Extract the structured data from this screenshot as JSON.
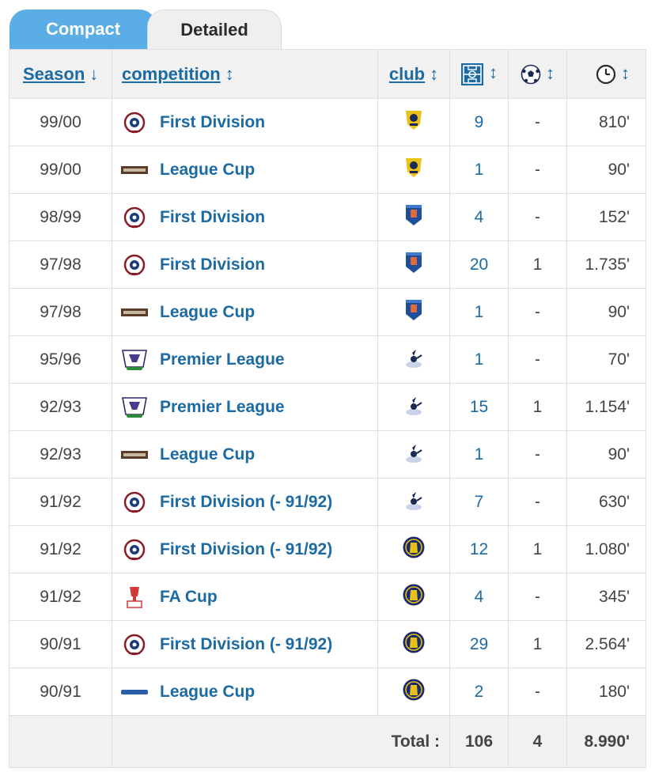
{
  "tabs": [
    {
      "label": "Compact",
      "active": true
    },
    {
      "label": "Detailed",
      "active": false
    }
  ],
  "header": {
    "season": "Season",
    "competition": "competition",
    "club": "club",
    "apps_icon": "pitch-icon",
    "goals_icon": "ball-icon",
    "minutes_icon": "clock-icon",
    "sort_desc": "↓",
    "sort_both": "↕"
  },
  "rows": [
    {
      "season": "99/00",
      "competition": "First Division",
      "comp_logo": "football-league-badge",
      "club_logo": "club-badge-yellow-navy",
      "apps": "9",
      "goals": "-",
      "minutes": "810'"
    },
    {
      "season": "99/00",
      "competition": "League Cup",
      "comp_logo": "league-cup-banner",
      "club_logo": "club-badge-yellow-navy",
      "apps": "1",
      "goals": "-",
      "minutes": "90'"
    },
    {
      "season": "98/99",
      "competition": "First Division",
      "comp_logo": "football-league-badge",
      "club_logo": "club-badge-blue-shield",
      "apps": "4",
      "goals": "-",
      "minutes": "152'"
    },
    {
      "season": "97/98",
      "competition": "First Division",
      "comp_logo": "football-league-badge",
      "club_logo": "club-badge-blue-shield",
      "apps": "20",
      "goals": "1",
      "minutes": "1.735'"
    },
    {
      "season": "97/98",
      "competition": "League Cup",
      "comp_logo": "league-cup-banner",
      "club_logo": "club-badge-blue-shield",
      "apps": "1",
      "goals": "-",
      "minutes": "90'"
    },
    {
      "season": "95/96",
      "competition": "Premier League",
      "comp_logo": "premier-league-lion",
      "club_logo": "club-badge-cockerel",
      "apps": "1",
      "goals": "-",
      "minutes": "70'"
    },
    {
      "season": "92/93",
      "competition": "Premier League",
      "comp_logo": "premier-league-lion",
      "club_logo": "club-badge-cockerel",
      "apps": "15",
      "goals": "1",
      "minutes": "1.154'"
    },
    {
      "season": "92/93",
      "competition": "League Cup",
      "comp_logo": "league-cup-banner",
      "club_logo": "club-badge-cockerel",
      "apps": "1",
      "goals": "-",
      "minutes": "90'"
    },
    {
      "season": "91/92",
      "competition": "First Division (- 91/92)",
      "comp_logo": "football-league-badge",
      "club_logo": "club-badge-cockerel",
      "apps": "7",
      "goals": "-",
      "minutes": "630'"
    },
    {
      "season": "91/92",
      "competition": "First Division (- 91/92)",
      "comp_logo": "football-league-badge",
      "club_logo": "club-badge-round-navy",
      "apps": "12",
      "goals": "1",
      "minutes": "1.080'"
    },
    {
      "season": "91/92",
      "competition": "FA Cup",
      "comp_logo": "fa-cup-trophy",
      "club_logo": "club-badge-round-navy",
      "apps": "4",
      "goals": "-",
      "minutes": "345'"
    },
    {
      "season": "90/91",
      "competition": "First Division (- 91/92)",
      "comp_logo": "football-league-badge",
      "club_logo": "club-badge-round-navy",
      "apps": "29",
      "goals": "1",
      "minutes": "2.564'"
    },
    {
      "season": "90/91",
      "competition": "League Cup",
      "comp_logo": "league-cup-banner-blue",
      "club_logo": "club-badge-round-navy",
      "apps": "2",
      "goals": "-",
      "minutes": "180'"
    }
  ],
  "total": {
    "label": "Total :",
    "apps": "106",
    "goals": "4",
    "minutes": "8.990'"
  },
  "colors": {
    "accent": "#5aaee5",
    "link": "#1b6aa3",
    "header_bg": "#f1f1f1"
  }
}
